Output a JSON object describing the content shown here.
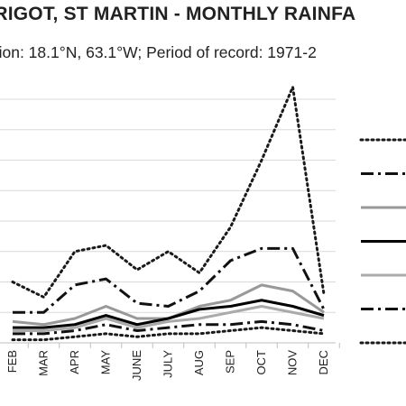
{
  "chart_data": {
    "type": "line",
    "title": "ARIGOT, ST MARTIN - MONTHLY RAINFA",
    "subtitle": "ation: 18.1°N, 63.1°W; Period of record: 1971-2",
    "categories": [
      "FEB",
      "MAR",
      "APR",
      "MAY",
      "JUNE",
      "JULY",
      "AUG",
      "SEP",
      "OCT",
      "NOV",
      "DEC"
    ],
    "ylim": [
      0,
      8
    ],
    "grid": true,
    "legend_position": "right",
    "series": [
      {
        "style": "dotted",
        "color": "#1a1a1a",
        "values": [
          2.0,
          1.5,
          3.0,
          3.2,
          2.4,
          3.0,
          2.3,
          3.8,
          6.0,
          8.4,
          1.6
        ]
      },
      {
        "style": "dash-dot",
        "color": "#111111",
        "values": [
          1.0,
          1.0,
          1.9,
          2.1,
          1.3,
          1.2,
          1.7,
          2.7,
          3.1,
          3.1,
          1.1
        ]
      },
      {
        "style": "solid",
        "color": "#999999",
        "values": [
          0.7,
          0.6,
          0.8,
          1.2,
          0.8,
          0.8,
          1.2,
          1.4,
          1.9,
          1.7,
          1.0
        ]
      },
      {
        "style": "solid",
        "color": "#000000",
        "values": [
          0.5,
          0.5,
          0.6,
          0.9,
          0.6,
          0.8,
          1.1,
          1.2,
          1.4,
          1.2,
          0.9
        ]
      },
      {
        "style": "solid",
        "color": "#aaaaaa",
        "values": [
          0.4,
          0.4,
          0.5,
          0.8,
          0.5,
          0.7,
          0.8,
          1.0,
          1.2,
          1.0,
          0.8
        ]
      },
      {
        "style": "dash-dot",
        "color": "#111111",
        "values": [
          0.3,
          0.3,
          0.4,
          0.6,
          0.4,
          0.5,
          0.6,
          0.6,
          0.7,
          0.6,
          0.4
        ]
      },
      {
        "style": "dotted",
        "color": "#1a1a1a",
        "values": [
          0.1,
          0.1,
          0.2,
          0.3,
          0.2,
          0.3,
          0.3,
          0.4,
          0.5,
          0.4,
          0.3
        ]
      }
    ]
  }
}
